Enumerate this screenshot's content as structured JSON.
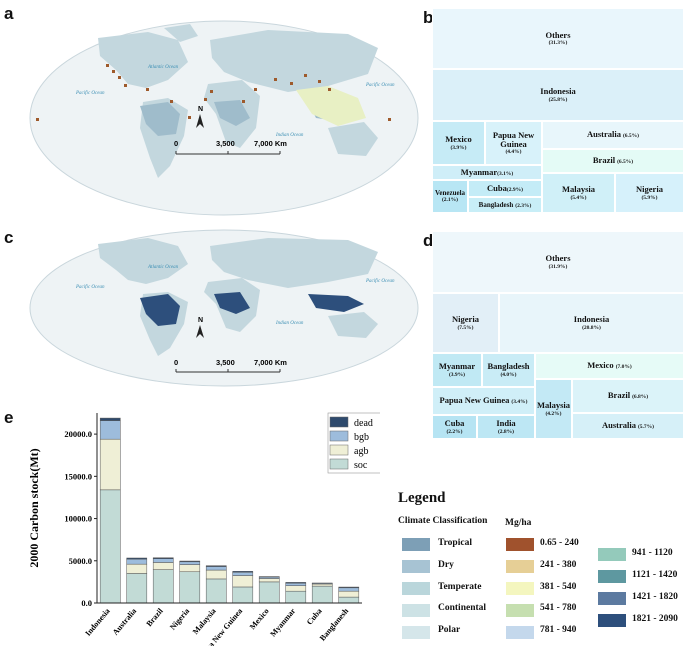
{
  "panel_labels": {
    "a": "a",
    "b": "b",
    "c": "c",
    "d": "d",
    "e": "e"
  },
  "map": {
    "oceans": {
      "atlantic": "Atlantic Ocean",
      "pacific_w": "Pacific Ocean",
      "pacific_e": "Pacific Ocean",
      "indian": "Indian Ocean"
    },
    "north_arrow": "N",
    "scale_ticks": [
      "0",
      "3,500",
      "7,000 Km"
    ]
  },
  "treemap_b": {
    "items": [
      {
        "name": "Others",
        "pct": "(31.3%)"
      },
      {
        "name": "Indonesia",
        "pct": "(25.8%)"
      },
      {
        "name": "Mexico",
        "pct": "(3.9%)"
      },
      {
        "name": "Papua New Guinea",
        "pct": "(4.4%)"
      },
      {
        "name": "Australia",
        "pct": "(6.5%)"
      },
      {
        "name": "Brazil",
        "pct": "(6.5%)"
      },
      {
        "name": "Myanmar",
        "pct": "(3.1%)"
      },
      {
        "name": "Venezuela",
        "pct": "(2.1%)"
      },
      {
        "name": "Cuba",
        "pct": "(2.9%)"
      },
      {
        "name": "Bangladesh",
        "pct": "(2.3%)"
      },
      {
        "name": "Malaysia",
        "pct": "(5.4%)"
      },
      {
        "name": "Nigeria",
        "pct": "(5.9%)"
      }
    ]
  },
  "treemap_d": {
    "items": [
      {
        "name": "Others",
        "pct": "(31.9%)"
      },
      {
        "name": "Nigeria",
        "pct": "(7.5%)"
      },
      {
        "name": "Indonesia",
        "pct": "(20.8%)"
      },
      {
        "name": "Myanmar",
        "pct": "(3.9%)"
      },
      {
        "name": "Bangladesh",
        "pct": "(4.0%)"
      },
      {
        "name": "Mexico",
        "pct": "(7.0%)"
      },
      {
        "name": "Brazil",
        "pct": "(6.8%)"
      },
      {
        "name": "Papua New Guinea",
        "pct": "(3.4%)"
      },
      {
        "name": "Malaysia",
        "pct": "(4.2%)"
      },
      {
        "name": "Cuba",
        "pct": "(2.2%)"
      },
      {
        "name": "India",
        "pct": "(2.8%)"
      },
      {
        "name": "Australia",
        "pct": "(5.7%)"
      }
    ]
  },
  "chart_data": {
    "type": "bar",
    "stacked": true,
    "ylabel": "2000 Carbon stock(Mt)",
    "xlabel": "",
    "ylim": [
      0,
      22500
    ],
    "yticks": [
      0,
      5000,
      10000,
      15000,
      20000
    ],
    "ytick_labels": [
      "0.0",
      "5000.0",
      "10000.0",
      "15000.0",
      "20000.0"
    ],
    "categories": [
      "Indonesia",
      "Australia",
      "Brazil",
      "Nigeria",
      "Malaysia",
      "Papua New Guinea",
      "Mexico",
      "Myanmar",
      "Cuba",
      "Banglanesh"
    ],
    "series": [
      {
        "name": "soc",
        "color": "#c2dbd6",
        "values": [
          13400,
          3500,
          3950,
          3700,
          2850,
          1900,
          2500,
          1400,
          2000,
          700
        ]
      },
      {
        "name": "agb",
        "color": "#efefd6",
        "values": [
          6000,
          1100,
          850,
          850,
          1050,
          1350,
          400,
          650,
          250,
          700
        ]
      },
      {
        "name": "bgb",
        "color": "#9dbcdc",
        "values": [
          2200,
          600,
          450,
          330,
          420,
          390,
          180,
          300,
          90,
          400
        ]
      },
      {
        "name": "dead",
        "color": "#2e4a6d",
        "values": [
          300,
          130,
          110,
          90,
          100,
          110,
          50,
          90,
          30,
          90
        ]
      }
    ],
    "legend_position": "top-right"
  },
  "legend": {
    "title": "Legend",
    "climate_title": "Climate Classification",
    "mgha_title": "Mg/ha",
    "climate": [
      {
        "label": "Tropical",
        "color": "#7d9fb6"
      },
      {
        "label": "Dry",
        "color": "#a7c3d3"
      },
      {
        "label": "Temperate",
        "color": "#bad6db"
      },
      {
        "label": "Continental",
        "color": "#cde2e5"
      },
      {
        "label": "Polar",
        "color": "#d5e6ea"
      }
    ],
    "mgha": [
      {
        "label": "0.65 - 240",
        "color": "#a0522d"
      },
      {
        "label": "241 - 380",
        "color": "#e6cf96"
      },
      {
        "label": "381 - 540",
        "color": "#f4f6bf"
      },
      {
        "label": "541 - 780",
        "color": "#c6dfb0"
      },
      {
        "label": "781 - 940",
        "color": "#c4d8ec"
      },
      {
        "label": "941 - 1120",
        "color": "#94cabb"
      },
      {
        "label": "1121 - 1420",
        "color": "#5e98a0"
      },
      {
        "label": "1421 - 1820",
        "color": "#5c7aa0"
      },
      {
        "label": "1821 - 2090",
        "color": "#2d4f7c"
      }
    ]
  }
}
